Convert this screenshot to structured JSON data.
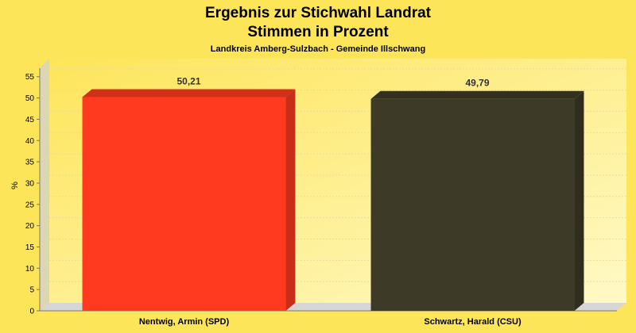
{
  "chart_data": {
    "type": "bar",
    "title_lines": [
      "Ergebnis zur Stichwahl Landrat",
      "Stimmen in Prozent"
    ],
    "subtitle": "Landkreis Amberg-Sulzbach - Gemeinde Illschwang",
    "xlabel": "",
    "ylabel": "%",
    "ylim": [
      0,
      57
    ],
    "yticks": [
      0,
      5,
      10,
      15,
      20,
      25,
      30,
      35,
      40,
      45,
      50,
      55
    ],
    "grid": true,
    "categories": [
      "Nentwig, Armin (SPD)",
      "Schwartz, Harald (CSU)"
    ],
    "values": [
      50.21,
      49.79
    ],
    "value_labels": [
      "50,21",
      "49,79"
    ],
    "colors": [
      "#ff3a1e",
      "#3d3a27"
    ],
    "background": "#fde55a"
  }
}
